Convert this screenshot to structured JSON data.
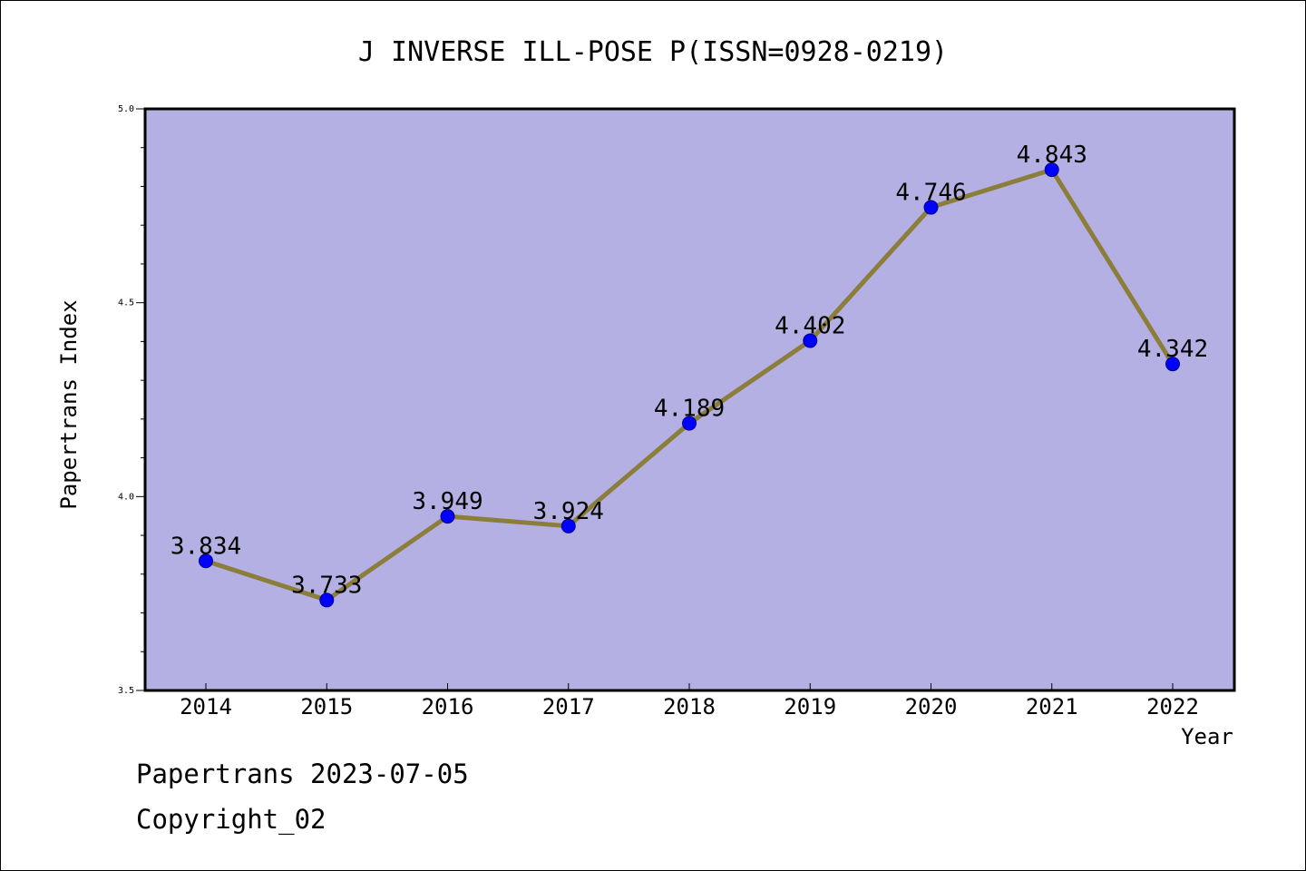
{
  "chart_data": {
    "type": "line",
    "title": "J INVERSE ILL-POSE P(ISSN=0928-0219)",
    "xlabel": "Year",
    "ylabel": "Papertrans Index",
    "categories": [
      "2014",
      "2015",
      "2016",
      "2017",
      "2018",
      "2019",
      "2020",
      "2021",
      "2022"
    ],
    "values": [
      3.834,
      3.733,
      3.949,
      3.924,
      4.189,
      4.402,
      4.746,
      4.843,
      4.342
    ],
    "labels": [
      "3.834",
      "3.733",
      "3.949",
      "3.924",
      "4.189",
      "4.402",
      "4.746",
      "4.843",
      "4.342"
    ],
    "ylim": [
      3.5,
      5.0
    ],
    "yticks": [
      "3.5",
      "4.0",
      "4.5",
      "5.0"
    ],
    "grid": false,
    "colors": {
      "plot_background": "#b5b0e3",
      "line": "#8b7d3a",
      "marker": "#0000ff"
    }
  },
  "footer": {
    "line1": "Papertrans 2023-07-05",
    "line2": "Copyright_02"
  }
}
